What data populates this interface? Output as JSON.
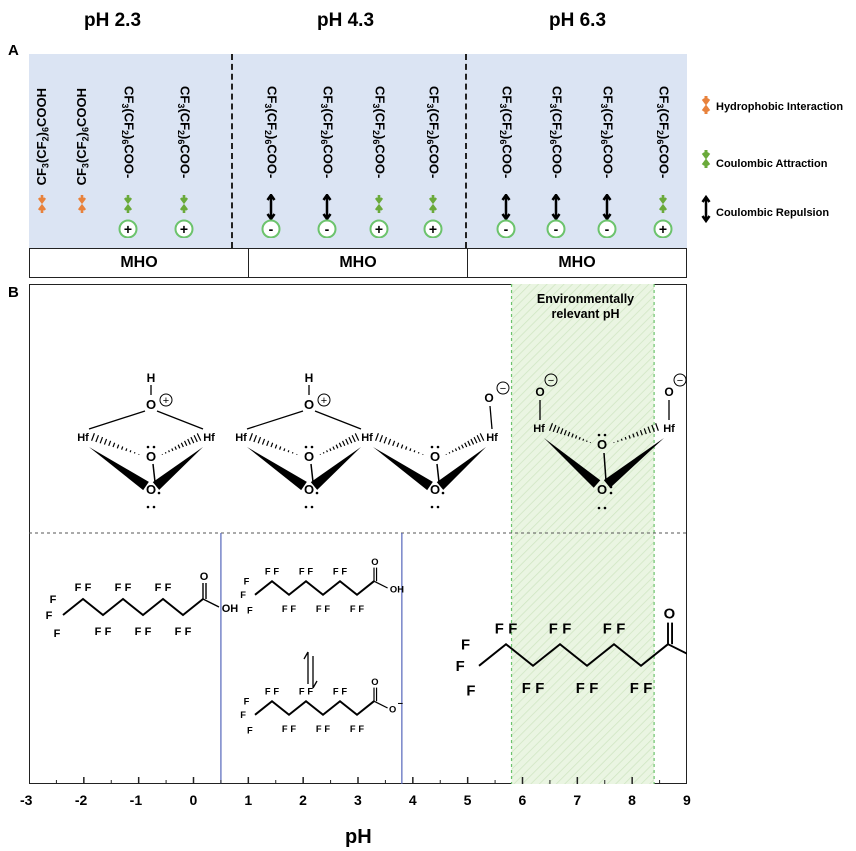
{
  "headers": [
    "pH 2.3",
    "pH 4.3",
    "pH 6.3"
  ],
  "panel_labels": {
    "a": "A",
    "b": "B"
  },
  "panelA": {
    "species": [
      {
        "formula": "CF3(CF2)6COOH",
        "arrow": "hydrophobic",
        "charge": ""
      },
      {
        "formula": "CF3(CF2)6COOH",
        "arrow": "hydrophobic",
        "charge": ""
      },
      {
        "formula": "CF3(CF2)6COO-",
        "arrow": "attraction",
        "charge": "+"
      },
      {
        "formula": "CF3(CF2)6COO-",
        "arrow": "attraction",
        "charge": "+"
      },
      {
        "formula": "CF3(CF2)6COO-",
        "arrow": "repulsion",
        "charge": "-"
      },
      {
        "formula": "CF3(CF2)6COO-",
        "arrow": "repulsion",
        "charge": "-"
      },
      {
        "formula": "CF3(CF2)6COO-",
        "arrow": "attraction",
        "charge": "+"
      },
      {
        "formula": "CF3(CF2)6COO-",
        "arrow": "attraction",
        "charge": "+"
      },
      {
        "formula": "CF3(CF2)6COO-",
        "arrow": "repulsion",
        "charge": "-"
      },
      {
        "formula": "CF3(CF2)6COO-",
        "arrow": "repulsion",
        "charge": "-"
      },
      {
        "formula": "CF3(CF2)6COO-",
        "arrow": "repulsion",
        "charge": "-"
      },
      {
        "formula": "CF3(CF2)6COO-",
        "arrow": "attraction",
        "charge": "+"
      }
    ],
    "mho_labels": [
      "MHO",
      "MHO",
      "MHO"
    ],
    "legend": [
      {
        "key": "hydrophobic",
        "text": "Hydrophobic Interaction",
        "color": "#e8823c"
      },
      {
        "key": "attraction",
        "text": "Coulombic Attraction",
        "color": "#6aaa3a"
      },
      {
        "key": "repulsion",
        "text": "Coulombic Repulsion",
        "color": "#000000"
      }
    ]
  },
  "panelB": {
    "env_label_line1": "Environmentally",
    "env_label_line2": "relevant pH",
    "x_axis_label": "pH",
    "x_ticks": [
      "-3",
      "-2",
      "-1",
      "0",
      "1",
      "2",
      "3",
      "4",
      "5",
      "6",
      "7",
      "8",
      "9"
    ],
    "x_range": [
      -3,
      9
    ],
    "env_range": [
      5.8,
      8.4
    ],
    "region_dividers": [
      0.5,
      3.8
    ],
    "colors": {
      "env_fill": "#eaf5e2",
      "env_border": "#6cc36c",
      "divider": "#5566bb",
      "panel_bg": "#dbe4f3"
    },
    "atoms": {
      "hf": "Hf",
      "o": "O",
      "h": "H",
      "f": "F",
      "oh": "OH"
    },
    "charges": {
      "plus": "+",
      "minus": "−"
    }
  }
}
